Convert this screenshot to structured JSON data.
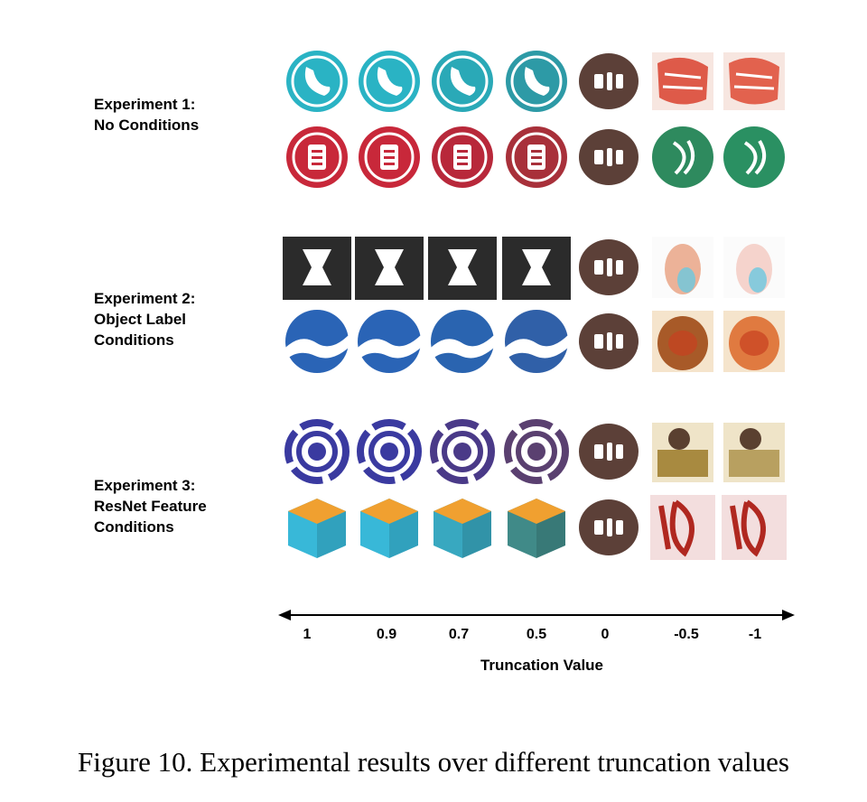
{
  "experiments": [
    {
      "line1": "Experiment 1:",
      "line2": "No Conditions",
      "line3": ""
    },
    {
      "line1": "Experiment 2:",
      "line2": "Object Label",
      "line3": "Conditions"
    },
    {
      "line1": "Experiment 3:",
      "line2": "ResNet Feature",
      "line3": "Conditions"
    }
  ],
  "axis": {
    "title": "Truncation Value",
    "ticks": [
      "1",
      "0.9",
      "0.7",
      "0.5",
      "0",
      "-0.5",
      "-1"
    ]
  },
  "caption": "Figure 10. Experimental results over different truncation values",
  "rows": [
    {
      "subject": "teal-phone-logo",
      "colors": [
        "#2ab3c4",
        "#2ab3c4",
        "#2aa9b7",
        "#2d9aa6",
        "#6b4a42",
        "#d9412e",
        "#de4a34"
      ]
    },
    {
      "subject": "red-badge-logo",
      "colors": [
        "#c8283a",
        "#c8283a",
        "#b8283a",
        "#a8303a",
        "#6b4a42",
        "#2e8a5e",
        "#2a9062"
      ]
    },
    {
      "subject": "black-hourglass-logo",
      "colors": [
        "#2b2b2b",
        "#2b2b2b",
        "#2b2b2b",
        "#2b2b2b",
        "#6b4a42",
        "#e8a080",
        "#f4c9c0"
      ]
    },
    {
      "subject": "blue-wave-logo",
      "colors": [
        "#2a64b6",
        "#2a64b6",
        "#2a64b0",
        "#3060a8",
        "#6b4a42",
        "#a85a28",
        "#e07a40"
      ]
    },
    {
      "subject": "purple-ring-logo",
      "colors": [
        "#3a3aa0",
        "#3a3aa0",
        "#4a3a88",
        "#5a4070",
        "#6b5a4a",
        "#a88a40",
        "#b8a060"
      ]
    },
    {
      "subject": "cyan-cube-logo",
      "colors": [
        "#38b8d8",
        "#38b8d8",
        "#38a8c0",
        "#408a88",
        "#6b5a4a",
        "#b02820",
        "#b02820"
      ]
    }
  ]
}
